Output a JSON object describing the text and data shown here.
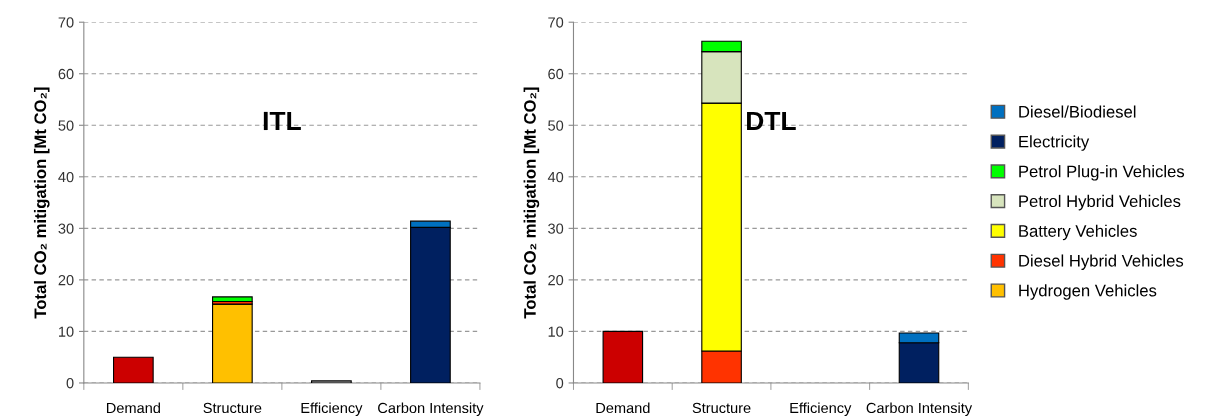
{
  "chart_data": [
    {
      "type": "bar",
      "stacked": true,
      "categories": [
        "Demand",
        "Structure",
        "Efficiency",
        "Carbon Intensity"
      ],
      "ylabel": "Total CO₂ mitigation [Mt CO₂]",
      "annotations": [
        "ITL"
      ],
      "ylim": [
        0,
        70
      ],
      "yticks": [
        0,
        10,
        20,
        30,
        40,
        50,
        60,
        70
      ],
      "grid": "y",
      "legend": false,
      "series": [
        {
          "color": "#cc0000",
          "values": [
            5.0,
            0,
            0,
            0
          ]
        },
        {
          "color": "#a6a6a6",
          "values": [
            0,
            0,
            0.4,
            0
          ]
        },
        {
          "color": "#ffc000",
          "values": [
            0,
            15.3,
            0,
            0
          ]
        },
        {
          "color": "#ff3300",
          "values": [
            0,
            0.5,
            0,
            0
          ]
        },
        {
          "color": "#ffff00",
          "values": [
            0,
            0,
            0,
            0
          ]
        },
        {
          "color": "#d7e4bd",
          "values": [
            0,
            null,
            0,
            0
          ]
        },
        {
          "color": "#00ff00",
          "values": [
            0,
            0.9,
            0,
            0
          ]
        },
        {
          "color": "#002060",
          "values": [
            0,
            0,
            0,
            30.2
          ]
        },
        {
          "color": "#0070c0",
          "values": [
            0,
            0,
            0,
            1.2
          ]
        }
      ]
    },
    {
      "type": "bar",
      "stacked": true,
      "categories": [
        "Demand",
        "Structure",
        "Efficiency",
        "Carbon Intensity"
      ],
      "ylabel": "Total CO₂ mitigation [Mt CO₂]",
      "annotations": [
        "DTL"
      ],
      "ylim": [
        0,
        70
      ],
      "yticks": [
        0,
        10,
        20,
        30,
        40,
        50,
        60,
        70
      ],
      "grid": "y",
      "legend": "right",
      "series": [
        {
          "color": "#cc0000",
          "values": [
            10.0,
            0,
            0,
            0
          ]
        },
        {
          "color": "#a6a6a6",
          "values": [
            0,
            0,
            null,
            0
          ]
        },
        {
          "name": "Hydrogen Vehicles",
          "color": "#ffc000",
          "values": [
            0,
            0,
            0,
            0
          ]
        },
        {
          "name": "Diesel Hybrid Vehicles",
          "color": "#ff3300",
          "values": [
            0,
            6.2,
            0,
            0
          ]
        },
        {
          "name": "Battery Vehicles",
          "color": "#ffff00",
          "values": [
            0,
            48.1,
            0,
            0
          ]
        },
        {
          "name": "Petrol Hybrid Vehicles",
          "color": "#d7e4bd",
          "values": [
            0,
            10.0,
            0,
            0
          ]
        },
        {
          "name": "Petrol Plug-in Vehicles",
          "color": "#00ff00",
          "values": [
            0,
            2.0,
            0,
            0
          ]
        },
        {
          "name": "Electricity",
          "color": "#002060",
          "values": [
            0,
            0,
            0,
            7.8
          ]
        },
        {
          "name": "Diesel/Biodiesel",
          "color": "#0070c0",
          "values": [
            0,
            0,
            0,
            1.9
          ]
        }
      ]
    }
  ]
}
